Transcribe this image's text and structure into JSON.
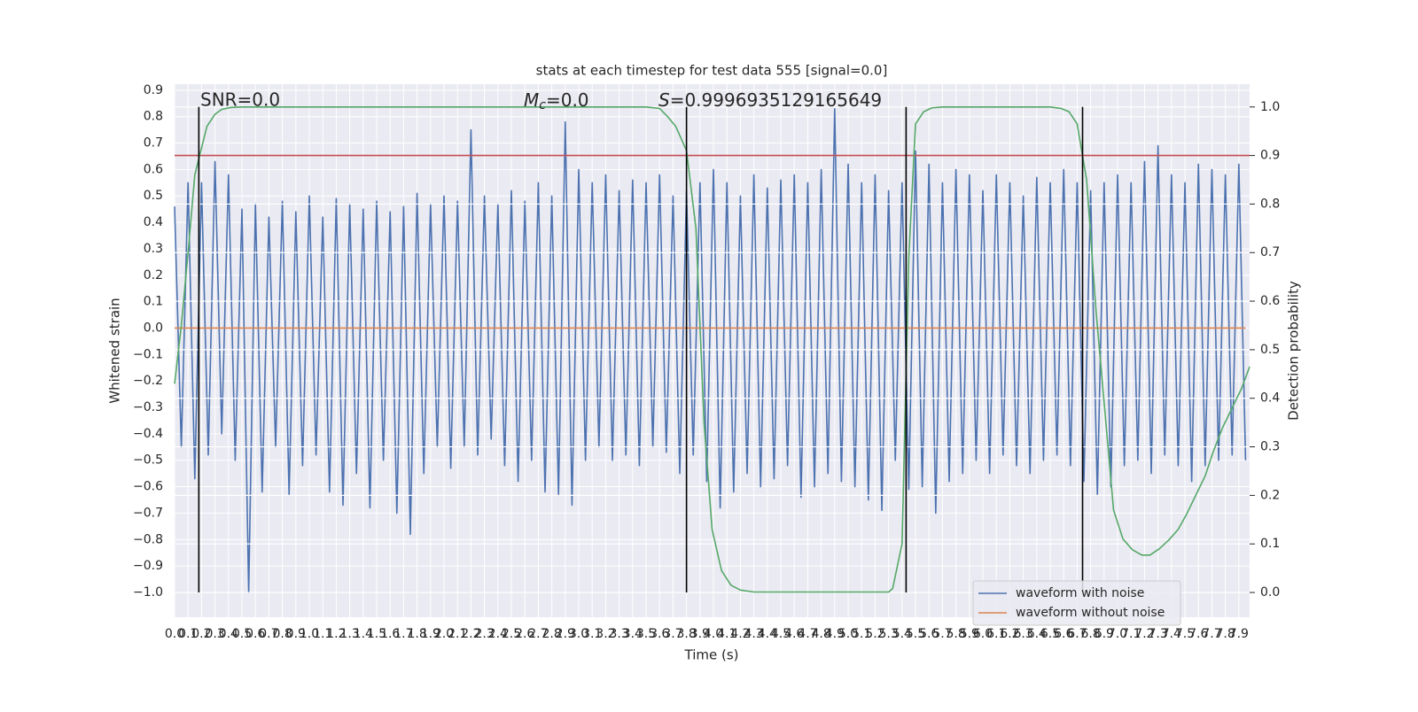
{
  "chart_data": {
    "type": "line",
    "title": "stats at each timestep for test data 555 [signal=0.0]",
    "xlabel": "Time (s)",
    "ylabel": "Whitened strain",
    "y2label": "Detection probability",
    "annotations": {
      "snr": "SNR=0.0",
      "mc": {
        "symbol": "M",
        "subscript": "c",
        "text": "=0.0"
      },
      "s": {
        "symbol": "S",
        "text": "=0.9996935129165649"
      }
    },
    "xlim": [
      0,
      7.98
    ],
    "ylim": [
      -1.094,
      0.923
    ],
    "y2lim": [
      -0.051,
      1.047
    ],
    "grid": true,
    "legend": "lower right",
    "xticks": [
      {
        "value": 0,
        "label": "0.0"
      },
      0.1,
      0.2,
      0.3,
      0.4,
      0.5,
      0.6,
      0.7,
      0.8,
      0.9,
      {
        "value": 1,
        "label": "1.0"
      },
      1.1,
      1.2,
      1.3,
      1.4,
      1.5,
      1.6,
      1.7,
      1.8,
      1.9,
      {
        "value": 2,
        "label": "2.0"
      },
      2.1,
      2.2,
      2.3,
      2.4,
      2.5,
      2.6,
      2.7,
      2.8,
      2.9,
      {
        "value": 3,
        "label": "3.0"
      },
      3.1,
      3.2,
      3.3,
      3.4,
      3.5,
      3.6,
      3.7,
      3.8,
      3.9,
      {
        "value": 4,
        "label": "4.0"
      },
      4.1,
      4.2,
      4.3,
      4.4,
      4.5,
      4.6,
      4.7,
      4.8,
      4.9,
      {
        "value": 5,
        "label": "5.0"
      },
      5.1,
      5.2,
      5.3,
      5.4,
      5.5,
      5.6,
      5.7,
      5.8,
      5.9,
      {
        "value": 6,
        "label": "6.0"
      },
      6.1,
      6.2,
      6.3,
      6.4,
      6.5,
      6.6,
      6.7,
      6.8,
      6.9,
      {
        "value": 7,
        "label": "7.0"
      },
      7.1,
      7.2,
      7.3,
      7.4,
      7.5,
      7.6,
      7.7,
      7.8,
      7.9
    ],
    "yticks": [
      {
        "value": -1,
        "label": "−1.0"
      },
      {
        "value": -0.9,
        "label": "−0.9"
      },
      {
        "value": -0.8,
        "label": "−0.8"
      },
      {
        "value": -0.7,
        "label": "−0.7"
      },
      {
        "value": -0.6,
        "label": "−0.6"
      },
      {
        "value": -0.5,
        "label": "−0.5"
      },
      {
        "value": -0.4,
        "label": "−0.4"
      },
      {
        "value": -0.3,
        "label": "−0.3"
      },
      {
        "value": -0.2,
        "label": "−0.2"
      },
      {
        "value": -0.1,
        "label": "−0.1"
      },
      {
        "value": 0,
        "label": "0.0"
      },
      0.1,
      0.2,
      0.3,
      0.4,
      0.5,
      0.6,
      0.7,
      0.8,
      0.9
    ],
    "y2ticks": [
      {
        "value": 0,
        "label": "0.0"
      },
      0.1,
      0.2,
      0.3,
      0.4,
      0.5,
      0.6,
      0.7,
      0.8,
      0.9,
      {
        "value": 1,
        "label": "1.0"
      }
    ],
    "series": [
      {
        "name": "waveform with noise",
        "color": "#4c72b0",
        "x": [
          0,
          0.05,
          0.1,
          0.15,
          0.2,
          0.25,
          0.3,
          0.35,
          0.4,
          0.45,
          0.5,
          0.55,
          0.6,
          0.65,
          0.7,
          0.75,
          0.8,
          0.85,
          0.9,
          0.95,
          1,
          1.05,
          1.1,
          1.15,
          1.2,
          1.25,
          1.3,
          1.35,
          1.4,
          1.45,
          1.5,
          1.55,
          1.6,
          1.65,
          1.7,
          1.75,
          1.8,
          1.85,
          1.9,
          1.95,
          2,
          2.05,
          2.1,
          2.15,
          2.2,
          2.25,
          2.3,
          2.35,
          2.4,
          2.45,
          2.5,
          2.55,
          2.6,
          2.65,
          2.7,
          2.75,
          2.8,
          2.85,
          2.9,
          2.95,
          3,
          3.05,
          3.1,
          3.15,
          3.2,
          3.25,
          3.3,
          3.35,
          3.4,
          3.45,
          3.5,
          3.55,
          3.6,
          3.65,
          3.7,
          3.75,
          3.8,
          3.85,
          3.9,
          3.95,
          4,
          4.05,
          4.1,
          4.15,
          4.2,
          4.25,
          4.3,
          4.35,
          4.4,
          4.45,
          4.5,
          4.55,
          4.6,
          4.65,
          4.7,
          4.75,
          4.8,
          4.85,
          4.9,
          4.95,
          5,
          5.05,
          5.1,
          5.15,
          5.2,
          5.25,
          5.3,
          5.35,
          5.4,
          5.45,
          5.5,
          5.55,
          5.6,
          5.65,
          5.7,
          5.75,
          5.8,
          5.85,
          5.9,
          5.95,
          6,
          6.05,
          6.1,
          6.15,
          6.2,
          6.25,
          6.3,
          6.35,
          6.4,
          6.45,
          6.5,
          6.55,
          6.6,
          6.65,
          6.7,
          6.75,
          6.8,
          6.85,
          6.9,
          6.95,
          7,
          7.05,
          7.1,
          7.15,
          7.2,
          7.25,
          7.3,
          7.35,
          7.4,
          7.45,
          7.5,
          7.55,
          7.6,
          7.65,
          7.7,
          7.75,
          7.8,
          7.85,
          7.9,
          7.95
        ],
        "values": [
          0.46,
          -0.45,
          0.55,
          -0.57,
          0.55,
          -0.48,
          0.63,
          -0.4,
          0.58,
          -0.5,
          0.45,
          -1.0,
          0.47,
          -0.62,
          0.42,
          -0.45,
          0.48,
          -0.63,
          0.44,
          -0.52,
          0.5,
          -0.48,
          0.42,
          -0.62,
          0.49,
          -0.67,
          0.47,
          -0.55,
          0.45,
          -0.68,
          0.48,
          -0.5,
          0.44,
          -0.7,
          0.46,
          -0.78,
          0.51,
          -0.55,
          0.47,
          -0.45,
          0.5,
          -0.53,
          0.48,
          -0.45,
          0.75,
          -0.48,
          0.5,
          -0.42,
          0.47,
          -0.52,
          0.52,
          -0.58,
          0.48,
          -0.5,
          0.55,
          -0.62,
          0.5,
          -0.63,
          0.78,
          -0.67,
          0.6,
          -0.5,
          0.55,
          -0.45,
          0.58,
          -0.5,
          0.52,
          -0.48,
          0.56,
          -0.52,
          0.55,
          -0.45,
          0.58,
          -0.47,
          0.5,
          -0.55,
          0.52,
          -0.48,
          0.55,
          -0.58,
          0.6,
          -0.68,
          0.55,
          -0.62,
          0.5,
          -0.55,
          0.58,
          -0.6,
          0.53,
          -0.57,
          0.56,
          -0.52,
          0.58,
          -0.64,
          0.55,
          -0.6,
          0.6,
          -0.55,
          0.83,
          -0.58,
          0.62,
          -0.6,
          0.55,
          -0.65,
          0.58,
          -0.69,
          0.52,
          -0.5,
          0.55,
          -0.61,
          0.67,
          -0.6,
          0.62,
          -0.7,
          0.55,
          -0.58,
          0.6,
          -0.55,
          0.58,
          -0.5,
          0.52,
          -0.55,
          0.58,
          -0.48,
          0.55,
          -0.52,
          0.5,
          -0.55,
          0.57,
          -0.5,
          0.55,
          -0.48,
          0.6,
          -0.52,
          0.55,
          -0.58,
          0.52,
          -0.63,
          0.55,
          -0.6,
          0.58,
          -0.52,
          0.55,
          -0.5,
          0.63,
          -0.55,
          0.69,
          -0.48,
          0.58,
          -0.52,
          0.55,
          -0.58,
          0.62,
          -0.52,
          0.6,
          -0.5,
          0.58,
          -0.48,
          0.62,
          -0.5
        ]
      },
      {
        "name": "waveform without noise",
        "color": "#dd8452",
        "x": [
          0,
          7.95
        ],
        "values": [
          0,
          0
        ]
      },
      {
        "color": "#55a868",
        "axis": "y2",
        "x": [
          0,
          0.05,
          0.1,
          0.15,
          0.24,
          0.3,
          0.35,
          0.42,
          0.5,
          3.5,
          3.6,
          3.66,
          3.72,
          3.8,
          3.87,
          3.93,
          3.99,
          4.06,
          4.13,
          4.2,
          4.3,
          5.3,
          5.33,
          5.4,
          5.45,
          5.5,
          5.56,
          5.62,
          5.7,
          6.5,
          6.58,
          6.64,
          6.7,
          6.77,
          6.84,
          6.91,
          6.97,
          7.04,
          7.11,
          7.18,
          7.24,
          7.31,
          7.38,
          7.45,
          7.51,
          7.58,
          7.65,
          7.71,
          7.78,
          7.85,
          7.92,
          7.98
        ],
        "values": [
          0.43,
          0.55,
          0.7,
          0.86,
          0.96,
          0.985,
          0.995,
          0.999,
          1.0,
          1.0,
          0.997,
          0.98,
          0.96,
          0.91,
          0.75,
          0.35,
          0.13,
          0.045,
          0.015,
          0.005,
          0.001,
          0.001,
          0.008,
          0.1,
          0.69,
          0.965,
          0.99,
          0.998,
          1.0,
          1.0,
          0.997,
          0.99,
          0.965,
          0.85,
          0.58,
          0.36,
          0.17,
          0.11,
          0.088,
          0.077,
          0.077,
          0.09,
          0.108,
          0.13,
          0.16,
          0.2,
          0.24,
          0.29,
          0.34,
          0.38,
          0.42,
          0.465
        ]
      }
    ],
    "threshold": {
      "value": 0.9,
      "axis": "y2",
      "color": "#c44e52"
    },
    "vlines": {
      "x": [
        0.18,
        3.8,
        5.43,
        6.74
      ],
      "y2": [
        0,
        1
      ],
      "color": "#000000"
    }
  }
}
